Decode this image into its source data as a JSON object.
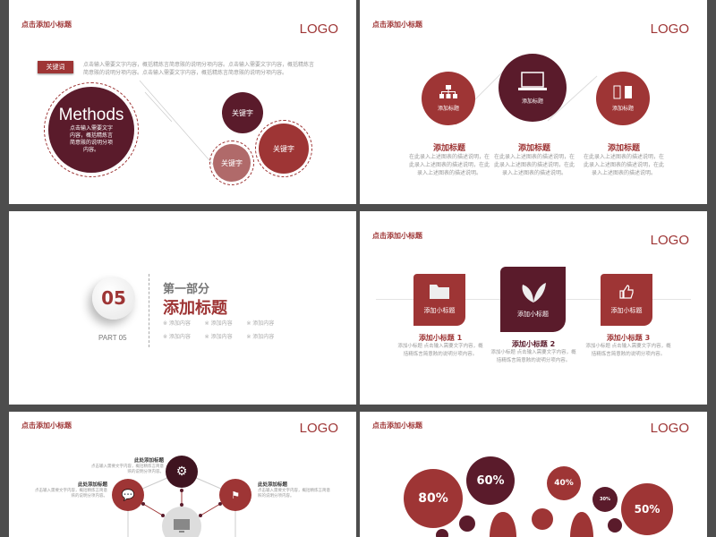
{
  "common": {
    "subtitle": "点击添加小标题",
    "logo": "LOGO"
  },
  "slide1": {
    "keyword_label": "关键词",
    "paragraph": "点击输入需要文字内容，概括精炼言简意赅的说明分项内容。点击输入需要文字内容，概括精炼言简意赅的说明分项内容。点击输入需要文字内容，概括精炼言简意赅的说明分项内容。",
    "main_circle": {
      "title": "Methods",
      "text": "点击输入需要文字内容，概括精炼言简意赅的说明分项内容。"
    },
    "keywords": [
      "关键字",
      "关键字",
      "关键字"
    ]
  },
  "slide2": {
    "items": [
      {
        "icon": "hierarchy-icon",
        "circle_label": "添加标题",
        "title": "添加标题",
        "desc": "在此录入上述图表的描述说明，在此录入上述图表的描述说明，在此录入上述图表的描述说明。"
      },
      {
        "icon": "laptop-icon",
        "circle_label": "添加标题",
        "title": "添加标题",
        "desc": "在此录入上述图表的描述说明，在此录入上述图表的描述说明，在此录入上述图表的描述说明。"
      },
      {
        "icon": "battery-icon",
        "circle_label": "添加标题",
        "title": "添加标题",
        "desc": "在此录入上述图表的描述说明，在此录入上述图表的描述说明，在此录入上述图表的描述说明。"
      }
    ]
  },
  "slide3": {
    "number": "05",
    "part": "PART 05",
    "section": "第一部分",
    "title": "添加标题",
    "items": [
      "※ 添加内容",
      "※ 添加内容",
      "※ 添加内容",
      "※ 添加内容",
      "※ 添加内容",
      "※ 添加内容"
    ]
  },
  "slide4": {
    "items": [
      {
        "icon": "folder-icon",
        "box_label": "添加小标题",
        "title": "添加小标题 1",
        "desc": "添加小标题 点击输入需要文字内容，概括精炼言简意赅的说明分项内容。"
      },
      {
        "icon": "leaf-icon",
        "box_label": "添加小标题",
        "title": "添加小标题 2",
        "desc": "添加小标题 点击输入需要文字内容，概括精炼言简意赅的说明分项内容。"
      },
      {
        "icon": "thumbs-up-icon",
        "box_label": "添加小标题",
        "title": "添加小标题 3",
        "desc": "添加小标题 点击输入需要文字内容，概括精炼言简意赅的说明分项内容。"
      }
    ]
  },
  "slide5": {
    "nodes": [
      {
        "icon": "gear-icon",
        "title": "此处添加标题",
        "desc": "点击输入需要文字内容，概括精炼言简意赅的说明分项内容。"
      },
      {
        "icon": "chat-icon",
        "title": "此处添加标题",
        "desc": "点击输入需要文字内容，概括精炼言简意赅的说明分项内容。"
      },
      {
        "icon": "flag-icon",
        "title": "此处添加标题",
        "desc": "点击输入需要文字内容，概括精炼言简意赅的说明分项内容。"
      }
    ],
    "center_icon": "monitor-icon"
  },
  "slide6": {
    "bubbles": [
      "80%",
      "60%",
      "40%",
      "30%",
      "50%"
    ]
  },
  "colors": {
    "red": "#9e3535",
    "dark": "#5a1b2b",
    "pink": "#b06a6a"
  }
}
